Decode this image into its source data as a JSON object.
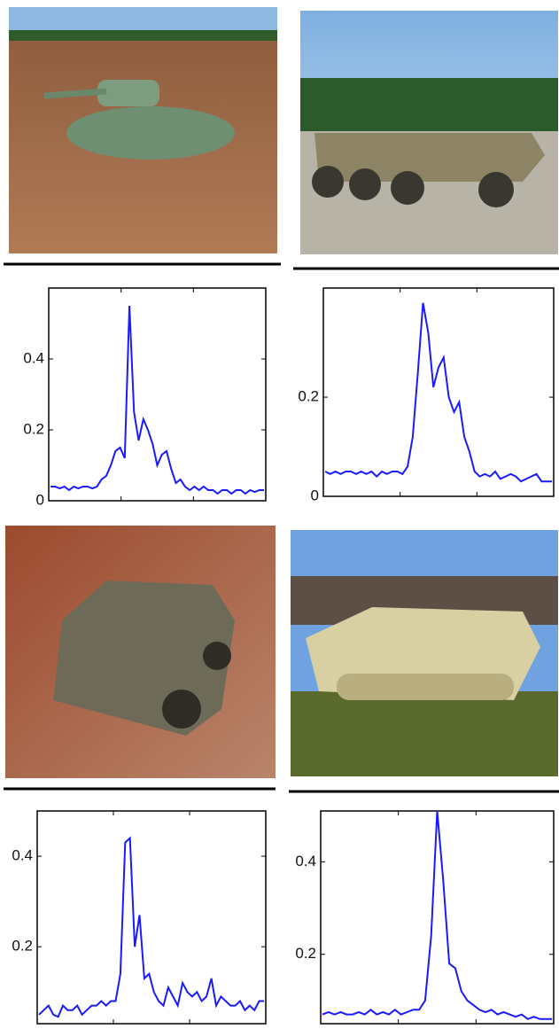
{
  "chart_data": [
    {
      "type": "line",
      "color": "#1a1aff",
      "ylim": [
        0,
        0.6
      ],
      "yticks": [
        0,
        0.2,
        0.4
      ],
      "values": [
        0.04,
        0.04,
        0.035,
        0.04,
        0.03,
        0.04,
        0.035,
        0.04,
        0.04,
        0.035,
        0.04,
        0.06,
        0.07,
        0.1,
        0.14,
        0.15,
        0.12,
        0.55,
        0.25,
        0.17,
        0.23,
        0.2,
        0.16,
        0.1,
        0.13,
        0.14,
        0.09,
        0.05,
        0.06,
        0.04,
        0.03,
        0.04,
        0.03,
        0.04,
        0.03,
        0.03,
        0.02,
        0.03,
        0.03,
        0.02,
        0.03,
        0.03,
        0.02,
        0.03,
        0.025,
        0.03,
        0.03
      ]
    },
    {
      "type": "line",
      "color": "#1a1aff",
      "ylim": [
        0,
        0.42
      ],
      "yticks": [
        0,
        0.2
      ],
      "values": [
        0.05,
        0.045,
        0.05,
        0.045,
        0.05,
        0.05,
        0.045,
        0.05,
        0.045,
        0.05,
        0.04,
        0.05,
        0.045,
        0.05,
        0.05,
        0.045,
        0.06,
        0.12,
        0.25,
        0.39,
        0.33,
        0.22,
        0.26,
        0.28,
        0.2,
        0.17,
        0.19,
        0.12,
        0.09,
        0.05,
        0.04,
        0.045,
        0.04,
        0.05,
        0.035,
        0.04,
        0.045,
        0.04,
        0.03,
        0.035,
        0.04,
        0.045,
        0.03,
        0.03,
        0.03
      ]
    },
    {
      "type": "line",
      "color": "#1a1aff",
      "ylim": [
        0.03,
        0.5
      ],
      "yticks": [
        0.2,
        0.4
      ],
      "values": [
        0.05,
        0.06,
        0.07,
        0.05,
        0.045,
        0.07,
        0.06,
        0.06,
        0.07,
        0.05,
        0.06,
        0.07,
        0.07,
        0.08,
        0.07,
        0.08,
        0.08,
        0.14,
        0.43,
        0.44,
        0.2,
        0.27,
        0.13,
        0.14,
        0.1,
        0.08,
        0.07,
        0.11,
        0.09,
        0.07,
        0.12,
        0.1,
        0.09,
        0.1,
        0.08,
        0.09,
        0.13,
        0.07,
        0.09,
        0.08,
        0.07,
        0.07,
        0.08,
        0.06,
        0.07,
        0.06,
        0.08,
        0.08
      ]
    },
    {
      "type": "line",
      "color": "#1a1aff",
      "ylim": [
        0.05,
        0.51
      ],
      "yticks": [
        0.2,
        0.4
      ],
      "values": [
        0.07,
        0.075,
        0.07,
        0.075,
        0.07,
        0.07,
        0.075,
        0.07,
        0.08,
        0.07,
        0.075,
        0.07,
        0.08,
        0.07,
        0.075,
        0.08,
        0.08,
        0.1,
        0.24,
        0.51,
        0.36,
        0.18,
        0.17,
        0.12,
        0.1,
        0.09,
        0.08,
        0.075,
        0.08,
        0.07,
        0.075,
        0.07,
        0.065,
        0.07,
        0.06,
        0.065,
        0.06,
        0.06,
        0.06
      ]
    }
  ]
}
